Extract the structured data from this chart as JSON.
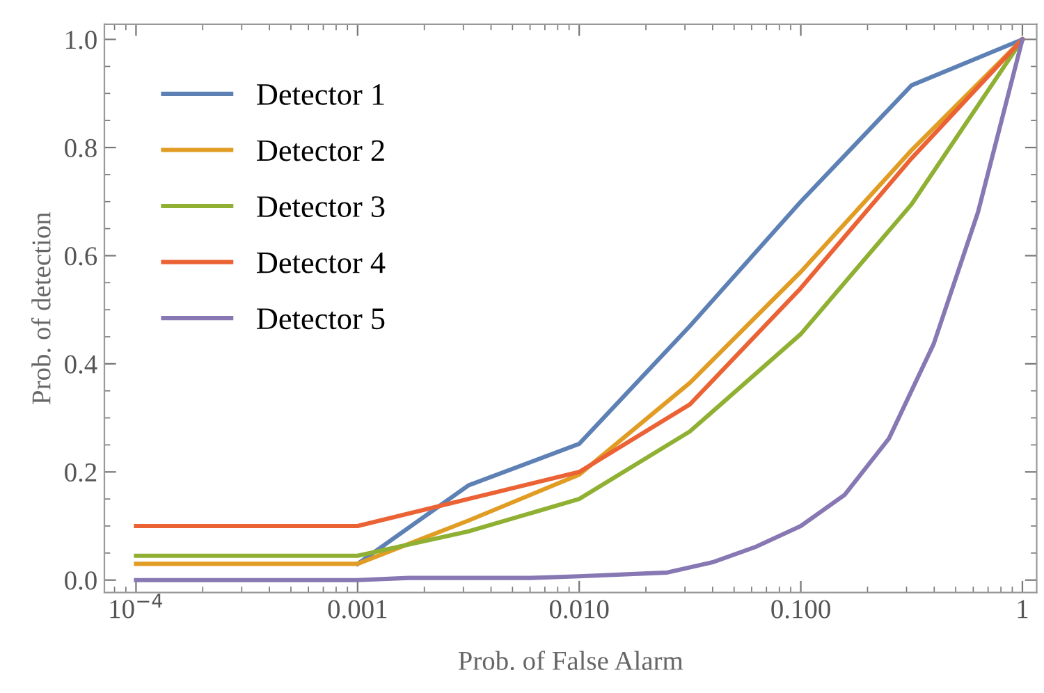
{
  "chart_data": {
    "type": "line",
    "xlabel": "Prob. of False Alarm",
    "ylabel": "Prob. of detection",
    "log": "x",
    "xlim": [
      7.2e-05,
      1.16
    ],
    "xticks": [
      {
        "value": 0.0001,
        "label": "10$^{−4}$"
      },
      {
        "value": 0.001,
        "label": "0.001"
      },
      {
        "value": 0.01,
        "label": "0.010"
      },
      {
        "value": 0.1,
        "label": "0.100"
      },
      {
        "value": 1,
        "label": "1"
      }
    ],
    "ylim": [
      -0.023,
      1.028
    ],
    "yticks": [
      {
        "value": 0,
        "label": "0.0"
      },
      {
        "value": 0.2,
        "label": "0.2"
      },
      {
        "value": 0.4,
        "label": "0.4"
      },
      {
        "value": 0.6,
        "label": "0.6"
      },
      {
        "value": 0.8,
        "label": "0.8"
      },
      {
        "value": 1,
        "label": "1.0"
      }
    ],
    "grid": false,
    "legend": "top left",
    "marker": "none",
    "line_style": "solid",
    "series": [
      {
        "name": "Detector 1",
        "color": "#5e81b5",
        "x": [
          0.001,
          0.00316,
          0.01,
          0.0316,
          0.1,
          0.316,
          1
        ],
        "values": [
          0.03,
          0.175,
          0.252,
          0.47,
          0.7,
          0.915,
          1
        ]
      },
      {
        "name": "Detector 2",
        "color": "#e19c24",
        "x": [
          0.0001,
          0.001,
          0.00316,
          0.01,
          0.0316,
          0.1,
          0.316,
          1
        ],
        "values": [
          0.03,
          0.03,
          0.11,
          0.195,
          0.365,
          0.57,
          0.795,
          1
        ]
      },
      {
        "name": "Detector 3",
        "color": "#8fb032",
        "x": [
          0.0001,
          0.001,
          0.00316,
          0.01,
          0.0316,
          0.1,
          0.316,
          1
        ],
        "values": [
          0.045,
          0.045,
          0.09,
          0.15,
          0.275,
          0.455,
          0.695,
          1
        ]
      },
      {
        "name": "Detector 4",
        "color": "#eb6235",
        "x": [
          0.0001,
          0.001,
          0.01,
          0.0316,
          0.1,
          0.316,
          1
        ],
        "values": [
          0.1,
          0.1,
          0.2,
          0.325,
          0.54,
          0.78,
          1
        ]
      },
      {
        "name": "Detector 5",
        "color": "#8778b3",
        "x": [
          0.0001,
          0.001,
          0.0017,
          0.006,
          0.01,
          0.025,
          0.04,
          0.063,
          0.1,
          0.158,
          0.25,
          0.398,
          0.63,
          1
        ],
        "values": [
          0,
          0,
          0.004,
          0.004,
          0.007,
          0.014,
          0.033,
          0.062,
          0.1,
          0.158,
          0.262,
          0.437,
          0.68,
          1
        ]
      }
    ]
  }
}
